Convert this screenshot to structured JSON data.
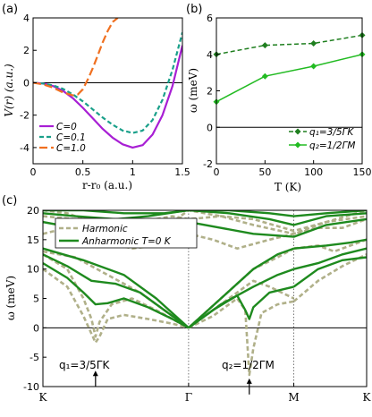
{
  "chart_data": [
    {
      "id": "a",
      "panel_label": "(a)",
      "type": "line",
      "ylabel": "V(r) (a.u.)",
      "xlabel": "r-r₀ (a.u.)",
      "xlim": [
        0,
        1.5
      ],
      "ylim": [
        -5,
        4
      ],
      "xticks": [
        "0",
        "0.5",
        "1",
        "1.5"
      ],
      "yticks": [
        "-4",
        "-2",
        "0",
        "2",
        "4"
      ],
      "legend_position": "lower-left",
      "series": [
        {
          "name": "C=0",
          "color": "#a81fd4",
          "dash": "solid",
          "x": [
            0,
            0.1,
            0.2,
            0.3,
            0.4,
            0.5,
            0.6,
            0.7,
            0.8,
            0.9,
            1.0,
            1.1,
            1.2,
            1.3,
            1.4,
            1.5
          ],
          "y": [
            0,
            -0.05,
            -0.2,
            -0.5,
            -0.95,
            -1.55,
            -2.2,
            -2.85,
            -3.4,
            -3.8,
            -4.0,
            -3.85,
            -3.2,
            -2.0,
            -0.2,
            2.3
          ]
        },
        {
          "name": "C=0.1",
          "color": "#1aa08a",
          "dash": "dashed",
          "x": [
            0,
            0.1,
            0.2,
            0.3,
            0.4,
            0.5,
            0.6,
            0.7,
            0.8,
            0.9,
            1.0,
            1.1,
            1.2,
            1.3,
            1.4,
            1.5
          ],
          "y": [
            0,
            -0.05,
            -0.17,
            -0.38,
            -0.72,
            -1.15,
            -1.65,
            -2.15,
            -2.6,
            -2.95,
            -3.1,
            -2.95,
            -2.3,
            -1.05,
            0.8,
            3.1
          ]
        },
        {
          "name": "C=1.0",
          "color": "#f07020",
          "dash": "longdash",
          "x": [
            0,
            0.1,
            0.2,
            0.3,
            0.4,
            0.45,
            0.5,
            0.55,
            0.6,
            0.65,
            0.7,
            0.75,
            0.8,
            0.85
          ],
          "y": [
            0,
            -0.1,
            -0.3,
            -0.6,
            -0.78,
            -0.72,
            -0.4,
            0.2,
            0.9,
            1.7,
            2.5,
            3.2,
            3.75,
            4.0
          ]
        }
      ]
    },
    {
      "id": "b",
      "panel_label": "(b)",
      "type": "line",
      "ylabel": "ω (meV)",
      "xlabel": "T (K)",
      "xlim": [
        0,
        150
      ],
      "ylim": [
        -2,
        6
      ],
      "xticks": [
        "0",
        "50",
        "100",
        "150"
      ],
      "yticks": [
        "-2",
        "0",
        "2",
        "4",
        "6"
      ],
      "legend_position": "lower-right",
      "series": [
        {
          "name": "q₁=3/5ΓK",
          "color": "#1f7f1f",
          "dash": "dashed",
          "x": [
            0,
            50,
            100,
            150
          ],
          "y": [
            4.0,
            4.5,
            4.6,
            5.05
          ]
        },
        {
          "name": "q₂=1/2ΓM",
          "color": "#22bb22",
          "dash": "solid",
          "x": [
            0,
            50,
            100,
            150
          ],
          "y": [
            1.4,
            2.8,
            3.35,
            4.0
          ]
        }
      ]
    },
    {
      "id": "c",
      "panel_label": "(c)",
      "type": "line",
      "ylabel": "ω (meV)",
      "xlim": [
        0,
        4
      ],
      "ylim": [
        -10,
        20
      ],
      "xtick_labels": [
        "K",
        "Γ",
        "M",
        "K"
      ],
      "xtick_positions": [
        0,
        1.8,
        3.1,
        4
      ],
      "yticks": [
        "-10",
        "-5",
        "0",
        "5",
        "10",
        "15",
        "20"
      ],
      "legend_position": "top-left",
      "annotations": [
        "q₁=3/5ΓK",
        "q₂=1/2ΓM"
      ],
      "series": [
        {
          "name": "Harmonic",
          "color": "#b0b089",
          "dash": "dashed",
          "branches": [
            {
              "x": [
                0,
                0.3,
                0.5,
                0.6,
                0.65,
                0.7,
                0.8,
                1.0,
                1.3,
                1.6,
                1.8
              ],
              "y": [
                10,
                7,
                2,
                -1,
                -2.5,
                -1.5,
                1.5,
                2.2,
                1.5,
                0.7,
                0
              ]
            },
            {
              "x": [
                0,
                0.3,
                0.5,
                0.6,
                0.65,
                0.7,
                0.85,
                1.1,
                1.4,
                1.8
              ],
              "y": [
                12.5,
                10,
                5,
                1.5,
                -1.5,
                1,
                4,
                5,
                3,
                0
              ]
            },
            {
              "x": [
                0,
                0.4,
                0.8,
                1.2,
                1.5,
                1.8
              ],
              "y": [
                13,
                12,
                9,
                6,
                3,
                0
              ]
            },
            {
              "x": [
                1.8,
                2.1,
                2.4,
                2.5,
                2.55,
                2.6,
                2.7,
                2.9,
                3.1
              ],
              "y": [
                0,
                2,
                5,
                3,
                -8,
                -3.5,
                2.5,
                4,
                4.5
              ]
            },
            {
              "x": [
                1.8,
                2.1,
                2.4,
                2.6,
                2.8,
                3.1
              ],
              "y": [
                0,
                3,
                6,
                8,
                7,
                5
              ]
            },
            {
              "x": [
                1.8,
                2.2,
                2.6,
                2.9,
                3.1
              ],
              "y": [
                0,
                5,
                10,
                12,
                13.5
              ]
            },
            {
              "x": [
                3.1,
                3.4,
                3.7,
                4.0
              ],
              "y": [
                4.5,
                8,
                10.5,
                12.5
              ]
            },
            {
              "x": [
                3.1,
                3.4,
                3.6,
                3.8,
                4.0
              ],
              "y": [
                13.5,
                14,
                13,
                14,
                15
              ]
            },
            {
              "x": [
                0,
                0.3,
                0.7,
                1.1,
                1.4,
                1.8,
                2.1,
                2.4,
                2.8,
                3.1,
                3.4,
                3.7,
                4.0
              ],
              "y": [
                16,
                17,
                15,
                13.5,
                14,
                16,
                15,
                13.5,
                15,
                16,
                17,
                17,
                18.5
              ]
            },
            {
              "x": [
                0,
                0.4,
                0.8,
                1.2,
                1.6,
                1.8,
                2.2,
                2.6,
                3.1,
                3.5,
                4.0
              ],
              "y": [
                19,
                18.5,
                17.5,
                18,
                19,
                18.5,
                19,
                18.5,
                16.5,
                18,
                19
              ]
            },
            {
              "x": [
                0,
                0.3,
                0.5,
                0.8,
                1.2,
                1.5,
                1.8,
                2.2,
                2.6,
                3.1,
                3.5,
                4.0
              ],
              "y": [
                20,
                19.5,
                18.5,
                16.5,
                15,
                17,
                20,
                19,
                17.5,
                16,
                18,
                20
              ]
            }
          ]
        },
        {
          "name": "Anharmonic T=0 K",
          "color": "#1e8a1e",
          "dash": "solid",
          "branches": [
            {
              "x": [
                0,
                0.3,
                0.5,
                0.65,
                0.8,
                1.0,
                1.3,
                1.6,
                1.8
              ],
              "y": [
                11,
                8.5,
                6,
                4,
                4.2,
                5,
                3.5,
                1.5,
                0
              ]
            },
            {
              "x": [
                0,
                0.3,
                0.6,
                0.9,
                1.2,
                1.5,
                1.8
              ],
              "y": [
                12.5,
                10.5,
                8,
                7.5,
                6,
                3,
                0
              ]
            },
            {
              "x": [
                0,
                0.5,
                1.0,
                1.4,
                1.8
              ],
              "y": [
                13.5,
                11.5,
                9,
                5,
                0
              ]
            },
            {
              "x": [
                1.8,
                2.1,
                2.4,
                2.5,
                2.55,
                2.6,
                2.8,
                3.1
              ],
              "y": [
                0,
                3,
                5.5,
                3,
                1.5,
                3.5,
                6,
                7
              ]
            },
            {
              "x": [
                1.8,
                2.2,
                2.6,
                2.9,
                3.1
              ],
              "y": [
                0,
                4,
                7,
                9,
                10
              ]
            },
            {
              "x": [
                1.8,
                2.2,
                2.6,
                2.9,
                3.1
              ],
              "y": [
                0,
                5,
                10,
                12.5,
                13.5
              ]
            },
            {
              "x": [
                3.1,
                3.4,
                3.7,
                4.0
              ],
              "y": [
                7,
                10,
                11.5,
                12
              ]
            },
            {
              "x": [
                3.1,
                3.4,
                3.7,
                4.0
              ],
              "y": [
                10,
                11,
                12.5,
                13.5
              ]
            },
            {
              "x": [
                3.1,
                3.5,
                3.8,
                4.0
              ],
              "y": [
                13.5,
                14,
                14.5,
                15
              ]
            },
            {
              "x": [
                0,
                0.4,
                0.8,
                1.2,
                1.6,
                1.8,
                2.2,
                2.6,
                3.1,
                3.5,
                4.0
              ],
              "y": [
                18,
                17,
                14.5,
                15.5,
                17,
                18,
                17,
                16,
                15.5,
                17.5,
                18.5
              ]
            },
            {
              "x": [
                0,
                0.4,
                0.9,
                1.3,
                1.8,
                2.3,
                2.8,
                3.1,
                3.5,
                4.0
              ],
              "y": [
                19.5,
                19,
                18.5,
                19,
                20,
                19.5,
                18.5,
                17.5,
                19,
                19.5
              ]
            },
            {
              "x": [
                0,
                0.5,
                1.0,
                1.5,
                1.8,
                2.3,
                2.8,
                3.1,
                3.5,
                4.0
              ],
              "y": [
                20,
                20,
                19.5,
                19.5,
                20,
                20,
                19.5,
                19,
                19.5,
                20
              ]
            }
          ]
        }
      ]
    }
  ]
}
